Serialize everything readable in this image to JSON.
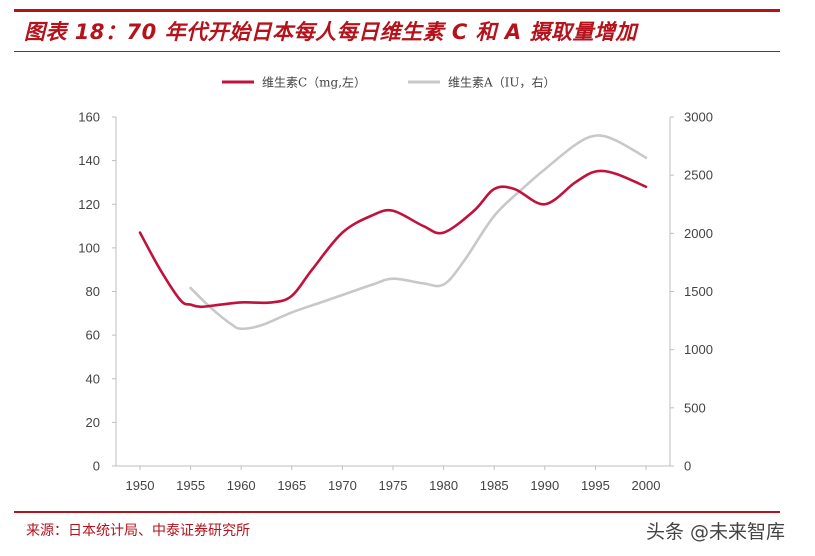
{
  "header": {
    "title": "图表 18：70 年代开始日本每人每日维生素 C 和 A 摄取量增加"
  },
  "footer": {
    "source": "来源：日本统计局、中泰证券研究所",
    "watermark": "头条 @未来智库"
  },
  "colors": {
    "accent": "#b5121b",
    "series_c": "#c0123c",
    "series_a": "#c8c8c8",
    "axis": "#bfbfbf"
  },
  "chart_data": {
    "type": "line",
    "title": "70 年代开始日本每人每日维生素 C 和 A 摄取量增加",
    "x": [
      1950,
      1955,
      1960,
      1965,
      1970,
      1975,
      1980,
      1985,
      1990,
      1995,
      2000
    ],
    "x_tick_labels": [
      "1950",
      "1955",
      "1960",
      "1965",
      "1970",
      "1975",
      "1980",
      "1985",
      "1990",
      "1995",
      "2000"
    ],
    "y_left": {
      "ylim": [
        0,
        160
      ],
      "ticks": [
        0,
        20,
        40,
        60,
        80,
        100,
        120,
        140,
        160
      ]
    },
    "y_right": {
      "ylim": [
        0,
        3000
      ],
      "ticks": [
        0,
        500,
        1000,
        1500,
        2000,
        2500,
        3000
      ]
    },
    "legend_position": "top",
    "grid": false,
    "series": [
      {
        "name": "维生素C（mg,左）",
        "axis": "left",
        "x": [
          1950,
          1952,
          1954,
          1955,
          1956,
          1958,
          1960,
          1963,
          1965,
          1967,
          1970,
          1973,
          1975,
          1978,
          1980,
          1983,
          1985,
          1987,
          1990,
          1993,
          1995,
          1997,
          2000
        ],
        "values": [
          107,
          90,
          76,
          74,
          73,
          74,
          75,
          75,
          78,
          90,
          107,
          115,
          117,
          110,
          107,
          117,
          127,
          127,
          120,
          130,
          135,
          134,
          128
        ]
      },
      {
        "name": "维生素A（IU，右）",
        "axis": "right",
        "x": [
          1955,
          1957,
          1959,
          1960,
          1962,
          1965,
          1968,
          1970,
          1973,
          1975,
          1978,
          1980,
          1982,
          1985,
          1988,
          1990,
          1993,
          1995,
          1997,
          2000
        ],
        "values": [
          1530,
          1360,
          1220,
          1180,
          1210,
          1320,
          1410,
          1470,
          1560,
          1610,
          1570,
          1560,
          1760,
          2150,
          2400,
          2550,
          2760,
          2840,
          2800,
          2650
        ]
      }
    ]
  }
}
